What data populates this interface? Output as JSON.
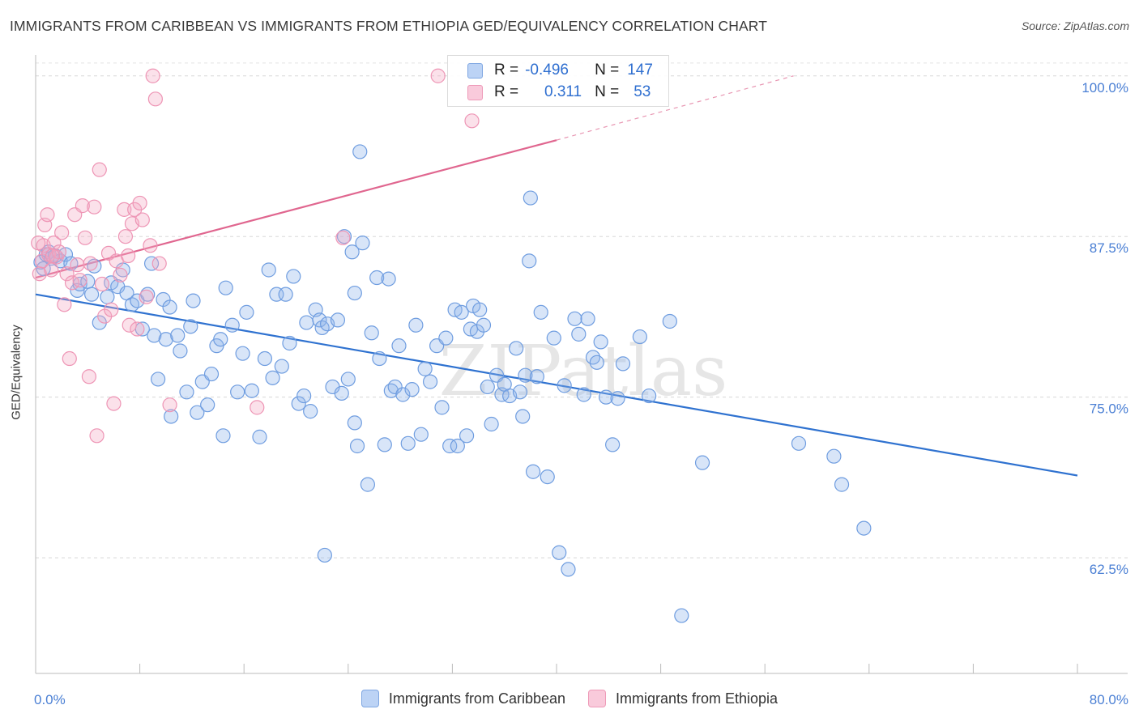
{
  "chart_data": {
    "type": "scatter",
    "title": "IMMIGRANTS FROM CARIBBEAN VS IMMIGRANTS FROM ETHIOPIA GED/EQUIVALENCY CORRELATION CHART",
    "source": "Source: ZipAtlas.com",
    "xlabel": "",
    "ylabel": "GED/Equivalency",
    "xlim": [
      0,
      80
    ],
    "ylim": [
      53.5,
      102
    ],
    "x_tick_labels": [
      "0.0%",
      "80.0%"
    ],
    "y_ticks": [
      {
        "value": 62.5,
        "label": "62.5%"
      },
      {
        "value": 75.0,
        "label": "75.0%"
      },
      {
        "value": 87.5,
        "label": "87.5%"
      },
      {
        "value": 100.0,
        "label": "100.0%"
      }
    ],
    "watermark": "ZIPatlas",
    "legend": {
      "rows": [
        {
          "r_label": "R =",
          "r_value": "-0.496",
          "n_label": "N =",
          "n_value": "147"
        },
        {
          "r_label": "R =",
          "r_value": "0.311",
          "n_label": "N =",
          "n_value": "53"
        }
      ]
    },
    "series": [
      {
        "name": "Immigrants from Caribbean",
        "color": "#8fb4ea",
        "line_color": "#2f72d0",
        "trend": {
          "x0": 0,
          "y0": 83.0,
          "x1": 80,
          "y1": 68.9
        },
        "points": [
          [
            0.4,
            85.5
          ],
          [
            0.6,
            85.0
          ],
          [
            0.8,
            86.1
          ],
          [
            1.0,
            86.3
          ],
          [
            1.2,
            85.8
          ],
          [
            1.5,
            86.0
          ],
          [
            1.9,
            85.6
          ],
          [
            2.3,
            86.1
          ],
          [
            2.7,
            85.4
          ],
          [
            3.2,
            83.3
          ],
          [
            3.4,
            83.8
          ],
          [
            4.0,
            84.0
          ],
          [
            4.3,
            83.0
          ],
          [
            4.5,
            85.2
          ],
          [
            4.9,
            80.8
          ],
          [
            5.5,
            82.8
          ],
          [
            5.8,
            83.9
          ],
          [
            6.3,
            83.6
          ],
          [
            6.7,
            84.9
          ],
          [
            7.0,
            83.1
          ],
          [
            7.4,
            82.2
          ],
          [
            7.8,
            82.5
          ],
          [
            8.2,
            80.3
          ],
          [
            8.6,
            83.0
          ],
          [
            8.9,
            85.4
          ],
          [
            9.1,
            79.8
          ],
          [
            9.4,
            76.4
          ],
          [
            9.8,
            82.6
          ],
          [
            10.0,
            79.5
          ],
          [
            10.3,
            82.0
          ],
          [
            10.4,
            73.5
          ],
          [
            10.9,
            79.8
          ],
          [
            11.1,
            78.6
          ],
          [
            11.6,
            75.4
          ],
          [
            11.9,
            80.5
          ],
          [
            12.1,
            82.5
          ],
          [
            12.4,
            73.8
          ],
          [
            12.8,
            76.2
          ],
          [
            13.2,
            74.4
          ],
          [
            13.5,
            76.8
          ],
          [
            13.9,
            79.0
          ],
          [
            14.2,
            79.5
          ],
          [
            14.4,
            72.0
          ],
          [
            14.6,
            83.5
          ],
          [
            15.1,
            80.6
          ],
          [
            15.5,
            75.4
          ],
          [
            15.9,
            78.4
          ],
          [
            16.2,
            81.6
          ],
          [
            16.6,
            75.5
          ],
          [
            17.2,
            71.9
          ],
          [
            17.6,
            78.0
          ],
          [
            17.9,
            84.9
          ],
          [
            18.2,
            76.5
          ],
          [
            18.5,
            83.0
          ],
          [
            18.9,
            77.4
          ],
          [
            19.2,
            83.0
          ],
          [
            19.5,
            79.2
          ],
          [
            19.8,
            84.4
          ],
          [
            20.2,
            74.5
          ],
          [
            20.6,
            75.1
          ],
          [
            20.8,
            80.8
          ],
          [
            21.1,
            73.9
          ],
          [
            21.5,
            81.8
          ],
          [
            21.8,
            81.0
          ],
          [
            22.0,
            80.4
          ],
          [
            22.4,
            80.7
          ],
          [
            22.8,
            75.8
          ],
          [
            23.2,
            81.0
          ],
          [
            23.5,
            75.3
          ],
          [
            23.7,
            87.5
          ],
          [
            24.0,
            76.4
          ],
          [
            24.3,
            86.3
          ],
          [
            24.5,
            83.1
          ],
          [
            24.7,
            71.2
          ],
          [
            25.1,
            87.0
          ],
          [
            25.5,
            68.2
          ],
          [
            25.8,
            80.0
          ],
          [
            26.2,
            84.3
          ],
          [
            26.4,
            78.0
          ],
          [
            26.8,
            71.3
          ],
          [
            27.1,
            84.2
          ],
          [
            27.3,
            75.5
          ],
          [
            27.6,
            75.8
          ],
          [
            27.9,
            79.0
          ],
          [
            28.2,
            75.2
          ],
          [
            28.6,
            71.4
          ],
          [
            28.9,
            75.6
          ],
          [
            29.2,
            80.6
          ],
          [
            29.6,
            72.1
          ],
          [
            29.9,
            77.2
          ],
          [
            30.3,
            76.2
          ],
          [
            30.8,
            79.0
          ],
          [
            31.2,
            74.2
          ],
          [
            31.5,
            79.6
          ],
          [
            31.8,
            71.2
          ],
          [
            32.2,
            81.8
          ],
          [
            32.4,
            71.2
          ],
          [
            32.7,
            81.6
          ],
          [
            33.1,
            72.0
          ],
          [
            33.4,
            80.3
          ],
          [
            33.6,
            82.1
          ],
          [
            33.9,
            80.1
          ],
          [
            34.1,
            81.8
          ],
          [
            34.4,
            80.6
          ],
          [
            34.7,
            75.8
          ],
          [
            35.0,
            72.9
          ],
          [
            35.4,
            76.7
          ],
          [
            35.8,
            75.2
          ],
          [
            36.0,
            76.0
          ],
          [
            36.4,
            75.1
          ],
          [
            36.9,
            78.8
          ],
          [
            37.2,
            75.4
          ],
          [
            37.4,
            73.5
          ],
          [
            37.6,
            76.7
          ],
          [
            37.9,
            85.6
          ],
          [
            38.2,
            69.2
          ],
          [
            38.5,
            76.6
          ],
          [
            38.8,
            81.6
          ],
          [
            39.3,
            68.8
          ],
          [
            39.8,
            79.6
          ],
          [
            40.2,
            62.9
          ],
          [
            40.6,
            75.9
          ],
          [
            40.9,
            61.6
          ],
          [
            41.4,
            81.1
          ],
          [
            41.7,
            79.9
          ],
          [
            42.1,
            75.2
          ],
          [
            42.4,
            81.1
          ],
          [
            42.8,
            78.1
          ],
          [
            43.1,
            77.7
          ],
          [
            43.4,
            79.3
          ],
          [
            43.8,
            75.0
          ],
          [
            44.3,
            71.3
          ],
          [
            45.1,
            77.6
          ],
          [
            46.4,
            79.7
          ],
          [
            47.1,
            75.1
          ],
          [
            48.7,
            80.9
          ],
          [
            49.6,
            58.0
          ],
          [
            51.2,
            69.9
          ],
          [
            58.6,
            71.4
          ],
          [
            61.3,
            70.4
          ],
          [
            61.9,
            68.2
          ],
          [
            63.6,
            64.8
          ],
          [
            38.0,
            90.5
          ],
          [
            24.9,
            94.1
          ],
          [
            22.2,
            62.7
          ],
          [
            44.7,
            74.9
          ],
          [
            24.5,
            73.0
          ]
        ]
      },
      {
        "name": "Immigrants from Ethiopia",
        "color": "#f4a8c2",
        "line_color": "#e0668f",
        "trend": {
          "x0": 0,
          "y0": 84.3,
          "x1": 40,
          "y1": 95.0,
          "x2": 58.2,
          "y2": 100.0
        },
        "points": [
          [
            0.3,
            84.6
          ],
          [
            0.5,
            85.6
          ],
          [
            0.6,
            86.8
          ],
          [
            0.7,
            88.4
          ],
          [
            0.9,
            89.2
          ],
          [
            1.0,
            86.1
          ],
          [
            1.2,
            84.9
          ],
          [
            1.4,
            87.0
          ],
          [
            1.6,
            85.9
          ],
          [
            1.8,
            86.3
          ],
          [
            2.0,
            87.8
          ],
          [
            2.2,
            82.2
          ],
          [
            2.4,
            84.6
          ],
          [
            2.6,
            78.0
          ],
          [
            2.8,
            83.9
          ],
          [
            3.0,
            89.2
          ],
          [
            3.2,
            85.3
          ],
          [
            3.4,
            84.1
          ],
          [
            3.6,
            89.9
          ],
          [
            3.8,
            87.4
          ],
          [
            4.1,
            76.6
          ],
          [
            4.2,
            85.4
          ],
          [
            4.5,
            89.8
          ],
          [
            4.7,
            72.0
          ],
          [
            4.9,
            92.7
          ],
          [
            5.1,
            83.8
          ],
          [
            5.3,
            81.3
          ],
          [
            5.6,
            86.2
          ],
          [
            5.8,
            81.8
          ],
          [
            6.0,
            74.5
          ],
          [
            6.2,
            85.6
          ],
          [
            6.5,
            84.5
          ],
          [
            6.8,
            89.6
          ],
          [
            6.9,
            87.5
          ],
          [
            7.1,
            86.0
          ],
          [
            7.2,
            80.6
          ],
          [
            7.4,
            88.5
          ],
          [
            7.6,
            89.6
          ],
          [
            7.8,
            80.3
          ],
          [
            8.0,
            90.1
          ],
          [
            8.2,
            88.8
          ],
          [
            8.5,
            82.8
          ],
          [
            8.8,
            86.8
          ],
          [
            9.0,
            100.0
          ],
          [
            9.2,
            98.2
          ],
          [
            9.5,
            85.4
          ],
          [
            10.3,
            74.4
          ],
          [
            17.0,
            74.2
          ],
          [
            23.6,
            87.4
          ],
          [
            30.9,
            100.0
          ],
          [
            33.5,
            96.5
          ],
          [
            0.2,
            87.0
          ],
          [
            1.3,
            86.0
          ]
        ]
      }
    ]
  }
}
